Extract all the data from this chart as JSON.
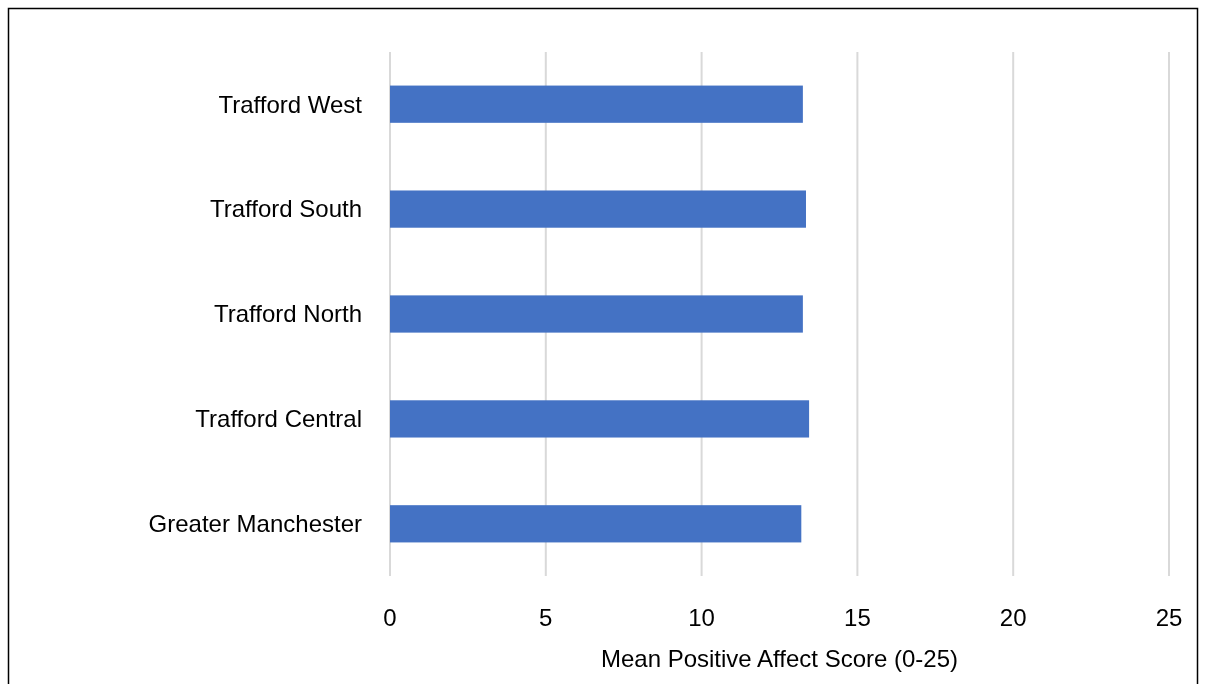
{
  "chart_data": {
    "type": "bar",
    "orientation": "horizontal",
    "xlabel": "Mean Positive Affect Score (0-25)",
    "categories": [
      "Trafford West",
      "Trafford South",
      "Trafford North",
      "Trafford Central",
      "Greater Manchester"
    ],
    "values": [
      13.25,
      13.35,
      13.25,
      13.45,
      13.2
    ],
    "color": "#4472c4",
    "xlim": [
      0,
      25
    ],
    "xticks": [
      0,
      5,
      10,
      15,
      20,
      25
    ],
    "grid": "x"
  }
}
